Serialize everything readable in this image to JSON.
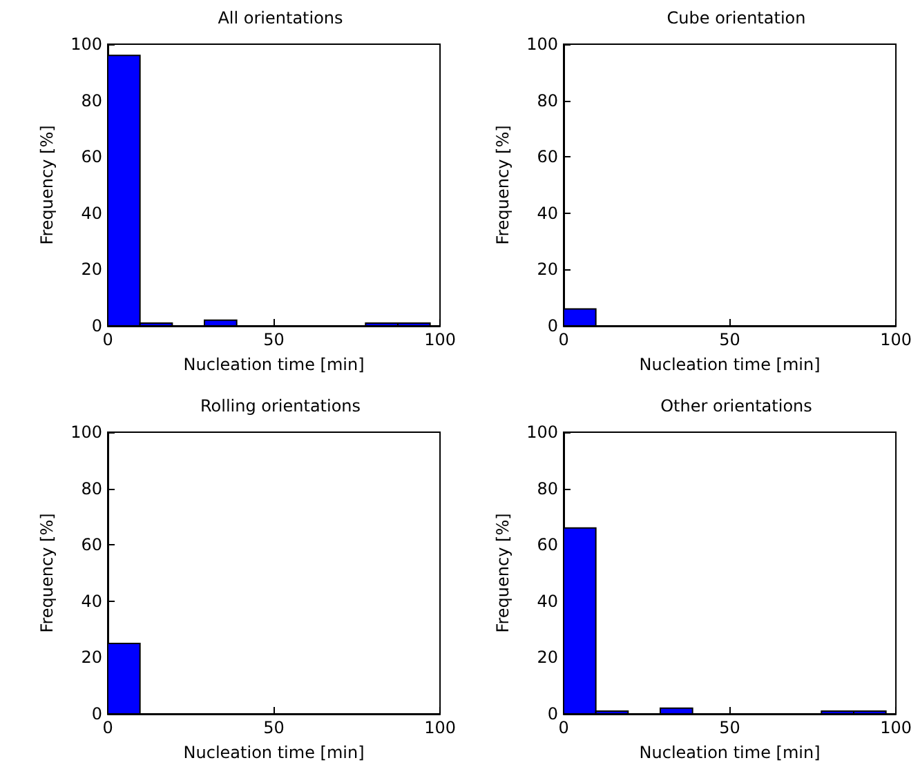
{
  "chart_data": [
    {
      "type": "histogram",
      "title": "All orientations",
      "xlabel": "Nucleation time [min]",
      "ylabel": "Frequency [%]",
      "bins": [
        0,
        9.7,
        19.4,
        29.1,
        38.8,
        48.5,
        58.2,
        67.9,
        77.6,
        87.3,
        97
      ],
      "values": [
        96,
        1,
        0,
        2,
        0,
        0,
        0,
        0,
        1,
        1
      ],
      "color": "#0000ff",
      "xlim": [
        0,
        100
      ],
      "xticks": [
        0,
        50,
        100
      ],
      "ylim": [
        0,
        100
      ],
      "yticks": [
        0,
        20,
        40,
        60,
        80,
        100
      ],
      "grid": false
    },
    {
      "type": "histogram",
      "title": "Cube orientation",
      "xlabel": "Nucleation time [min]",
      "ylabel": "Frequency [%]",
      "bins": [
        0,
        9.7,
        19.4,
        29.1,
        38.8,
        48.5,
        58.2,
        67.9,
        77.6,
        87.3,
        97
      ],
      "values": [
        6,
        0,
        0,
        0,
        0,
        0,
        0,
        0,
        0,
        0
      ],
      "color": "#0000ff",
      "xlim": [
        0,
        100
      ],
      "xticks": [
        0,
        50,
        100
      ],
      "ylim": [
        0,
        100
      ],
      "yticks": [
        0,
        20,
        40,
        60,
        80,
        100
      ],
      "grid": false
    },
    {
      "type": "histogram",
      "title": "Rolling orientations",
      "xlabel": "Nucleation time [min]",
      "ylabel": "Frequency [%]",
      "bins": [
        0,
        9.7,
        19.4,
        29.1,
        38.8,
        48.5,
        58.2,
        67.9,
        77.6,
        87.3,
        97
      ],
      "values": [
        25,
        0,
        0,
        0,
        0,
        0,
        0,
        0,
        0,
        0
      ],
      "color": "#0000ff",
      "xlim": [
        0,
        100
      ],
      "xticks": [
        0,
        50,
        100
      ],
      "ylim": [
        0,
        100
      ],
      "yticks": [
        0,
        20,
        40,
        60,
        80,
        100
      ],
      "grid": false
    },
    {
      "type": "histogram",
      "title": "Other orientations",
      "xlabel": "Nucleation time [min]",
      "ylabel": "Frequency [%]",
      "bins": [
        0,
        9.7,
        19.4,
        29.1,
        38.8,
        48.5,
        58.2,
        67.9,
        77.6,
        87.3,
        97
      ],
      "values": [
        66,
        1,
        0,
        2,
        0,
        0,
        0,
        0,
        1,
        1
      ],
      "color": "#0000ff",
      "xlim": [
        0,
        100
      ],
      "xticks": [
        0,
        50,
        100
      ],
      "ylim": [
        0,
        100
      ],
      "yticks": [
        0,
        20,
        40,
        60,
        80,
        100
      ],
      "grid": false
    }
  ]
}
